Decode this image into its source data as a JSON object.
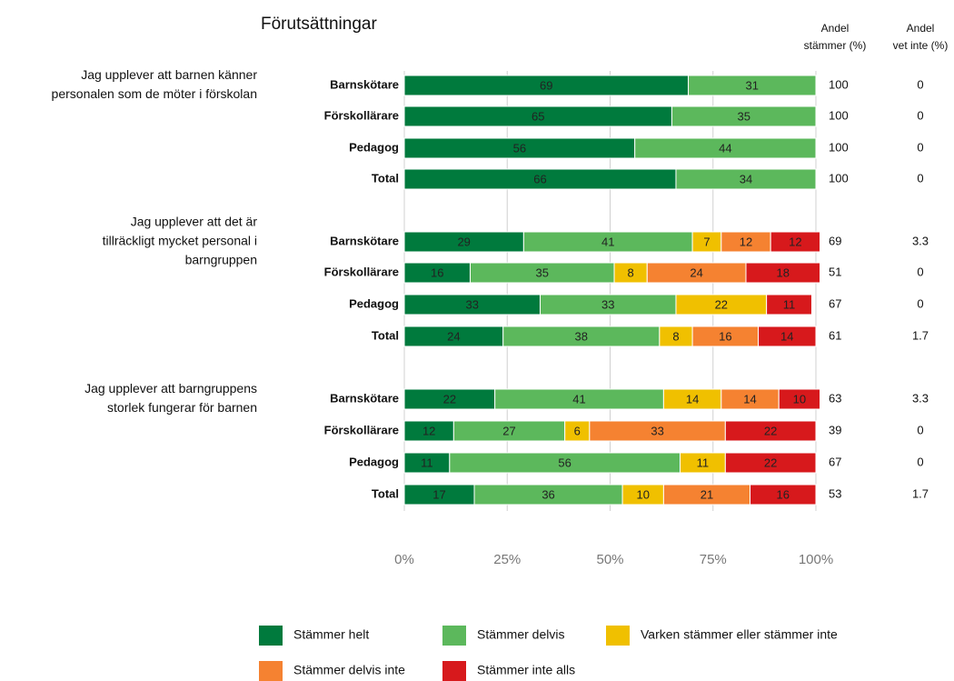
{
  "chart_data": {
    "type": "bar",
    "orientation": "horizontal",
    "stacked": true,
    "title": "Förutsättningar",
    "xlim": [
      0,
      100
    ],
    "xticks": [
      {
        "value": 0,
        "label": "0%"
      },
      {
        "value": 25,
        "label": "25%"
      },
      {
        "value": 50,
        "label": "50%"
      },
      {
        "value": 75,
        "label": "75%"
      },
      {
        "value": 100,
        "label": "100%"
      }
    ],
    "grid": true,
    "groups": [
      [
        "Jag upplever att barnen känner",
        "personalen som de möter i förskolan"
      ],
      [
        "Jag upplever att det är",
        "tillräckligt mycket personal i",
        "barngruppen"
      ],
      [
        "Jag upplever att barngruppens",
        "storlek fungerar för barnen"
      ]
    ],
    "categories": [
      [
        "Barnskötare",
        "Förskollärare",
        "Pedagog",
        "Total"
      ],
      [
        "Barnskötare",
        "Förskollärare",
        "Pedagog",
        "Total"
      ],
      [
        "Barnskötare",
        "Förskollärare",
        "Pedagog",
        "Total"
      ]
    ],
    "series": [
      {
        "name": "Stämmer helt",
        "color": "#007a3d",
        "values": [
          [
            69,
            65,
            56,
            66
          ],
          [
            29,
            16,
            33,
            24
          ],
          [
            22,
            12,
            11,
            17
          ]
        ]
      },
      {
        "name": "Stämmer delvis",
        "color": "#5cb85c",
        "values": [
          [
            31,
            35,
            44,
            34
          ],
          [
            41,
            35,
            33,
            38
          ],
          [
            41,
            27,
            56,
            36
          ]
        ]
      },
      {
        "name": "Varken stämmer eller stämmer inte",
        "color": "#f0c000",
        "values": [
          [
            null,
            null,
            null,
            null
          ],
          [
            7,
            8,
            22,
            8
          ],
          [
            14,
            6,
            11,
            10
          ]
        ]
      },
      {
        "name": "Stämmer delvis inte",
        "color": "#f58231",
        "values": [
          [
            null,
            null,
            null,
            null
          ],
          [
            12,
            24,
            null,
            16
          ],
          [
            14,
            33,
            null,
            21
          ]
        ]
      },
      {
        "name": "Stämmer inte alls",
        "color": "#d7191c",
        "values": [
          [
            null,
            null,
            null,
            null
          ],
          [
            12,
            18,
            11,
            14
          ],
          [
            10,
            22,
            22,
            16
          ]
        ]
      }
    ],
    "columns": [
      {
        "label": [
          "Andel",
          "stämmer (%)"
        ],
        "values": [
          [
            100,
            100,
            100,
            100
          ],
          [
            69,
            51,
            67,
            61
          ],
          [
            63,
            39,
            67,
            53
          ]
        ]
      },
      {
        "label": [
          "Andel",
          "vet inte (%)"
        ],
        "values": [
          [
            0,
            0,
            0,
            0
          ],
          [
            3.3,
            0,
            0,
            1.7
          ],
          [
            3.3,
            0,
            0,
            1.7
          ]
        ]
      }
    ],
    "legend": "bottom"
  }
}
